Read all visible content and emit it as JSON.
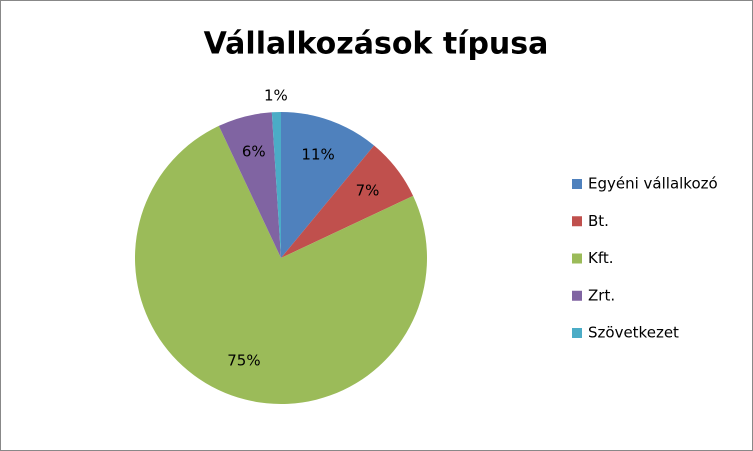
{
  "chart_data": {
    "type": "pie",
    "title": "Vállalkozások típusa",
    "categories": [
      "Egyéni vállalkozó",
      "Bt.",
      "Kft.",
      "Zrt.",
      "Szövetkezet"
    ],
    "values": [
      11,
      7,
      75,
      6,
      1
    ],
    "value_labels": [
      "11%",
      "7%",
      "75%",
      "6%",
      "1%"
    ],
    "colors": [
      "#4f81bd",
      "#c0504d",
      "#9bbb59",
      "#8064a2",
      "#4bacc6"
    ],
    "legend": "right"
  }
}
